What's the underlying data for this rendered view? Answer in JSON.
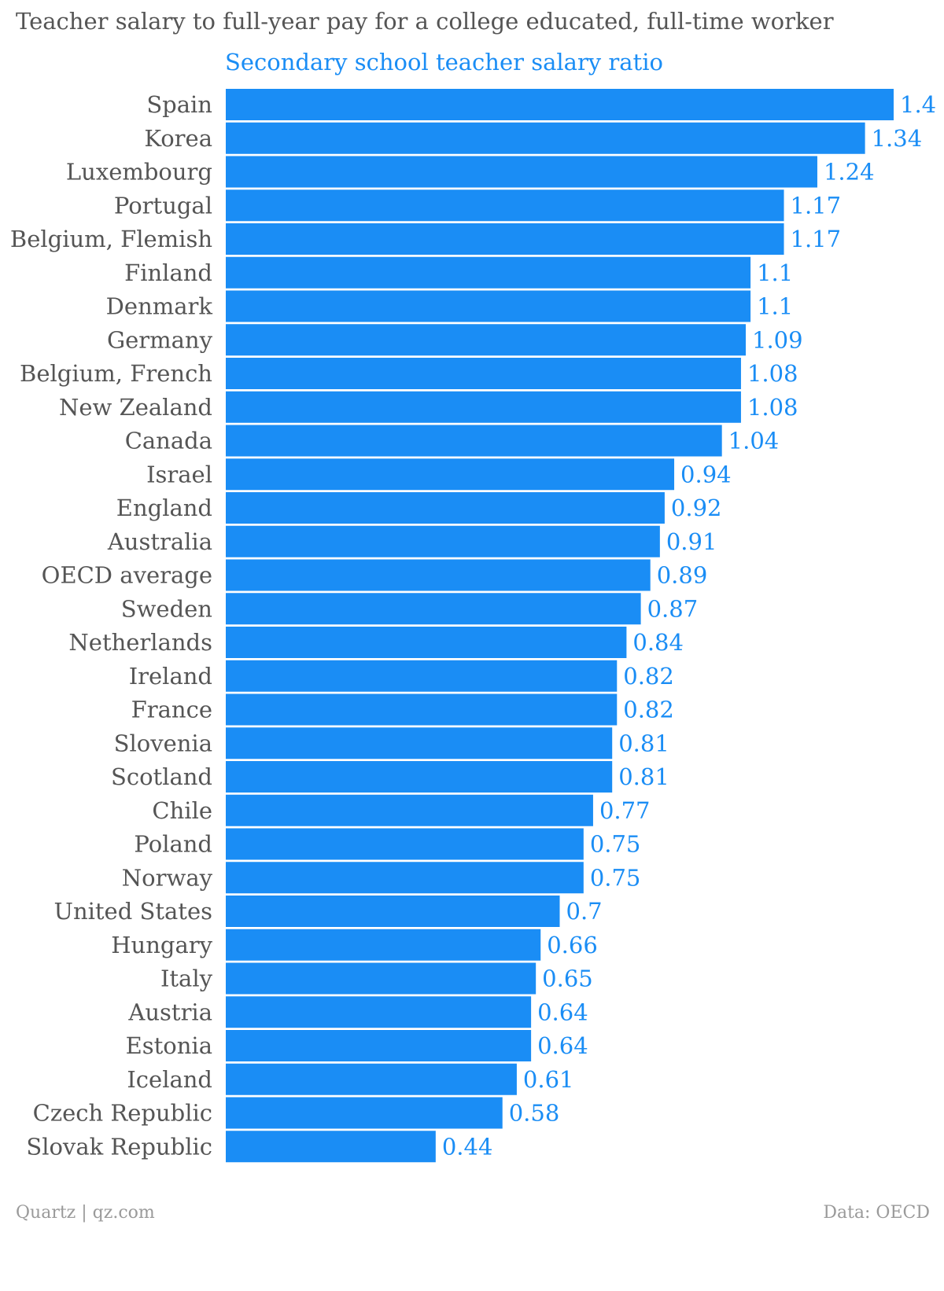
{
  "chart_data": {
    "type": "bar",
    "orientation": "horizontal",
    "title": "Teacher salary to full-year pay for a college educated, full-time worker",
    "series": [
      {
        "name": "Secondary school teacher salary ratio",
        "color": "#1a8df5",
        "values": [
          1.4,
          1.34,
          1.24,
          1.17,
          1.17,
          1.1,
          1.1,
          1.09,
          1.08,
          1.08,
          1.04,
          0.94,
          0.92,
          0.91,
          0.89,
          0.87,
          0.84,
          0.82,
          0.82,
          0.81,
          0.81,
          0.77,
          0.75,
          0.75,
          0.7,
          0.66,
          0.65,
          0.64,
          0.64,
          0.61,
          0.58,
          0.44
        ]
      }
    ],
    "categories": [
      "Spain",
      "Korea",
      "Luxembourg",
      "Portugal",
      "Belgium, Flemish",
      "Finland",
      "Denmark",
      "Germany",
      "Belgium, French",
      "New Zealand",
      "Canada",
      "Israel",
      "England",
      "Australia",
      "OECD average",
      "Sweden",
      "Netherlands",
      "Ireland",
      "France",
      "Slovenia",
      "Scotland",
      "Chile",
      "Poland",
      "Norway",
      "United States",
      "Hungary",
      "Italy",
      "Austria",
      "Estonia",
      "Iceland",
      "Czech Republic",
      "Slovak Republic"
    ],
    "value_labels": [
      "1.4",
      "1.34",
      "1.24",
      "1.17",
      "1.17",
      "1.1",
      "1.1",
      "1.09",
      "1.08",
      "1.08",
      "1.04",
      "0.94",
      "0.92",
      "0.91",
      "0.89",
      "0.87",
      "0.84",
      "0.82",
      "0.82",
      "0.81",
      "0.81",
      "0.77",
      "0.75",
      "0.75",
      "0.7",
      "0.66",
      "0.65",
      "0.64",
      "0.64",
      "0.61",
      "0.58",
      "0.44"
    ],
    "xlim": [
      0,
      1.4
    ],
    "grid": false,
    "legend": "none"
  },
  "footer": {
    "source_left": "Quartz | qz.com",
    "source_right": "Data: OECD"
  },
  "colors": {
    "bar": "#1a8df5",
    "value_label": "#1a8df5",
    "category_label": "#555555",
    "title": "#555555",
    "footer": "#9a9a9a"
  }
}
